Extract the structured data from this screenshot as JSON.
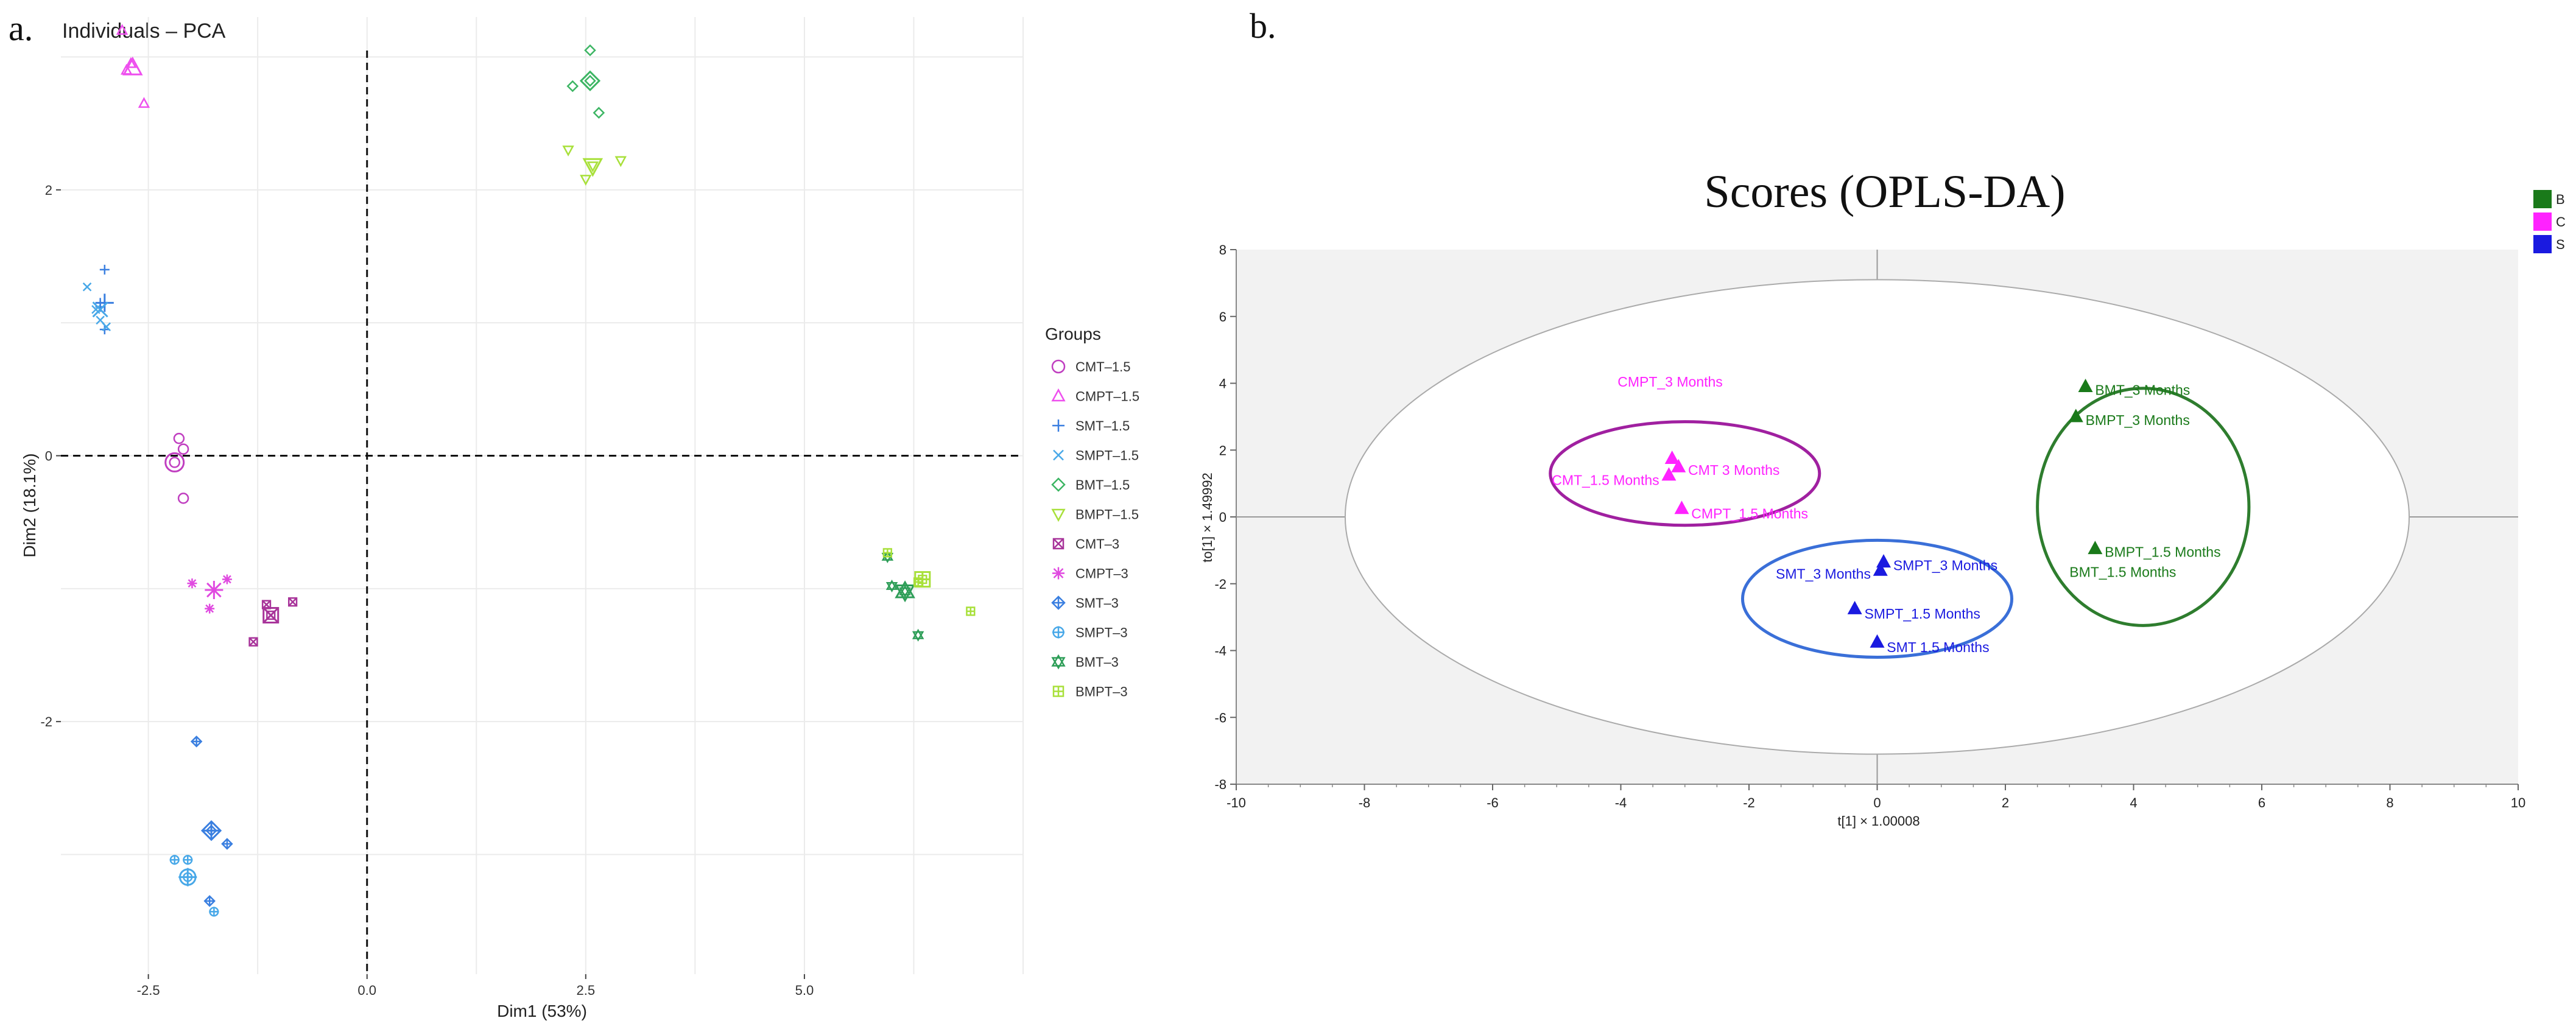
{
  "panel_a_label": "a.",
  "panel_b_label": "b.",
  "chart_data": [
    {
      "type": "scatter",
      "title": "Individuals – PCA",
      "xlabel": "Dim1 (53%)",
      "ylabel": "Dim2 (18.1%)",
      "xlim": [
        -3.5,
        7.5
      ],
      "ylim": [
        -3.9,
        3.3
      ],
      "xticks": [
        -2.5,
        0.0,
        2.5,
        5.0
      ],
      "xtick_labels": [
        "-2.5",
        "0.0",
        "2.5",
        "5.0"
      ],
      "yticks": [
        2,
        0,
        -2
      ],
      "ytick_labels": [
        "2",
        "0",
        "-2"
      ],
      "grid": true,
      "legend_title": "Groups",
      "legend_position": "right",
      "series": [
        {
          "name": "CMT–1.5",
          "color": "#c03ec0",
          "marker": "circle",
          "points": [
            [
              -2.1,
              0.05
            ],
            [
              -2.15,
              0.13
            ],
            [
              -2.2,
              -0.05
            ],
            [
              -2.1,
              -0.32
            ]
          ],
          "centroid": [
            -2.2,
            -0.05
          ]
        },
        {
          "name": "CMPT–1.5",
          "color": "#ee4fee",
          "marker": "triangle",
          "points": [
            [
              -2.8,
              3.2
            ],
            [
              -2.7,
              2.95
            ],
            [
              -2.55,
              2.65
            ],
            [
              -2.75,
              2.9
            ]
          ],
          "centroid": [
            -2.68,
            2.92
          ]
        },
        {
          "name": "SMT–1.5",
          "color": "#3a7fe0",
          "marker": "plus",
          "points": [
            [
              -3.05,
              1.12
            ],
            [
              -3.0,
              1.4
            ],
            [
              -3.0,
              0.95
            ],
            [
              -3.05,
              1.15
            ]
          ],
          "centroid": [
            -3.0,
            1.15
          ]
        },
        {
          "name": "SMPT–1.5",
          "color": "#48a8e8",
          "marker": "x",
          "points": [
            [
              -3.2,
              1.27
            ],
            [
              -3.1,
              1.1
            ],
            [
              -3.05,
              1.02
            ],
            [
              -2.98,
              0.97
            ]
          ],
          "centroid": [
            -3.05,
            1.1
          ]
        },
        {
          "name": "BMT–1.5",
          "color": "#3cb563",
          "marker": "diamond",
          "points": [
            [
              2.55,
              3.05
            ],
            [
              2.35,
              2.78
            ],
            [
              2.65,
              2.58
            ],
            [
              2.55,
              2.82
            ]
          ],
          "centroid": [
            2.55,
            2.82
          ]
        },
        {
          "name": "BMPT–1.5",
          "color": "#a8e03a",
          "marker": "triangle-down",
          "points": [
            [
              2.3,
              2.3
            ],
            [
              2.5,
              2.08
            ],
            [
              2.9,
              2.22
            ],
            [
              2.58,
              2.18
            ]
          ],
          "centroid": [
            2.58,
            2.18
          ]
        },
        {
          "name": "CMT–3",
          "color": "#a8349a",
          "marker": "square-x",
          "points": [
            [
              -1.3,
              -1.4
            ],
            [
              -0.85,
              -1.1
            ],
            [
              -1.15,
              -1.12
            ],
            [
              -1.1,
              -1.2
            ]
          ],
          "centroid": [
            -1.1,
            -1.2
          ]
        },
        {
          "name": "CMPT–3",
          "color": "#e04ae0",
          "marker": "asterisk",
          "points": [
            [
              -1.6,
              -0.93
            ],
            [
              -2.0,
              -0.96
            ],
            [
              -1.8,
              -1.15
            ],
            [
              -1.75,
              -1.01
            ]
          ],
          "centroid": [
            -1.75,
            -1.01
          ]
        },
        {
          "name": "SMT–3",
          "color": "#3a7fe0",
          "marker": "diamond-plus",
          "points": [
            [
              -1.95,
              -2.15
            ],
            [
              -1.6,
              -2.92
            ],
            [
              -1.8,
              -3.35
            ],
            [
              -1.78,
              -2.82
            ]
          ],
          "centroid": [
            -1.78,
            -2.82
          ]
        },
        {
          "name": "SMPT–3",
          "color": "#48a8e8",
          "marker": "circle-plus",
          "points": [
            [
              -2.2,
              -3.04
            ],
            [
              -2.05,
              -3.04
            ],
            [
              -1.75,
              -3.43
            ],
            [
              -2.05,
              -3.17
            ]
          ],
          "centroid": [
            -2.05,
            -3.17
          ]
        },
        {
          "name": "BMT–3",
          "color": "#2e9e58",
          "marker": "star-triangle",
          "points": [
            [
              5.95,
              -0.76
            ],
            [
              6.0,
              -0.98
            ],
            [
              6.15,
              -1.02
            ],
            [
              6.3,
              -1.35
            ]
          ],
          "centroid": [
            6.15,
            -1.02
          ]
        },
        {
          "name": "BMPT–3",
          "color": "#a8e03a",
          "marker": "square-plus",
          "points": [
            [
              5.95,
              -0.73
            ],
            [
              6.3,
              -0.95
            ],
            [
              6.9,
              -1.17
            ],
            [
              6.35,
              -0.93
            ]
          ],
          "centroid": [
            6.35,
            -0.93
          ]
        }
      ]
    },
    {
      "type": "scatter",
      "title": "Scores (OPLS-DA)",
      "xlabel": "t[1] × 1.00008",
      "ylabel": "to[1] × 1.49992",
      "xlim": [
        -10,
        10
      ],
      "ylim": [
        -8,
        8
      ],
      "xticks": [
        -10,
        -8,
        -6,
        -4,
        -2,
        0,
        2,
        4,
        6,
        8,
        10
      ],
      "xtick_labels": [
        "-10",
        "-8",
        "-6",
        "-4",
        "-2",
        "0",
        "2",
        "4",
        "6",
        "8",
        "10"
      ],
      "yticks": [
        8,
        6,
        4,
        2,
        0,
        -2,
        -4,
        -6,
        -8
      ],
      "ytick_labels": [
        "8",
        "6",
        "4",
        "2",
        "0",
        "-2",
        "-4",
        "-6",
        "-8"
      ],
      "legend_position": "top-right",
      "legend": [
        {
          "label": "B",
          "color": "#1a7a1a"
        },
        {
          "label": "C",
          "color": "#ff22ff"
        },
        {
          "label": "S",
          "color": "#1a1ae0"
        }
      ],
      "points": [
        {
          "label": "CMPT_3 Months",
          "x": -3.2,
          "y": 1.75,
          "group": "C",
          "label_dx": -0.85,
          "label_dy": 2.3,
          "anchor": "start"
        },
        {
          "label": "CMT 3 Months",
          "x": -3.1,
          "y": 1.5,
          "group": "C",
          "label_dx": 0.15,
          "label_dy": -0.1,
          "anchor": "start"
        },
        {
          "label": "CMT_1.5 Months",
          "x": -3.25,
          "y": 1.25,
          "group": "C",
          "label_dx": -0.15,
          "label_dy": -0.15,
          "anchor": "end"
        },
        {
          "label": "CMPT_1.5 Months",
          "x": -3.05,
          "y": 0.25,
          "group": "C",
          "label_dx": 0.15,
          "label_dy": -0.15,
          "anchor": "start"
        },
        {
          "label": "BMT_3 Months",
          "x": 3.25,
          "y": 3.9,
          "group": "B",
          "label_dx": 0.15,
          "label_dy": -0.1,
          "anchor": "start"
        },
        {
          "label": "BMPT_3 Months",
          "x": 3.1,
          "y": 3.0,
          "group": "B",
          "label_dx": 0.15,
          "label_dy": -0.1,
          "anchor": "start"
        },
        {
          "label": "BMPT_1.5 Months",
          "x": 3.4,
          "y": -0.95,
          "group": "B",
          "label_dx": 0.15,
          "label_dy": -0.1,
          "anchor": "start"
        },
        {
          "label": "BMT_1.5 Months",
          "x": 3.05,
          "y": -1.55,
          "group": "B",
          "label_dx": -0.05,
          "label_dy": -0.1,
          "anchor": "start",
          "no_marker": true
        },
        {
          "label": "SMPT_3 Months",
          "x": 0.1,
          "y": -1.35,
          "group": "S",
          "label_dx": 0.15,
          "label_dy": -0.1,
          "anchor": "start"
        },
        {
          "label": "SMT_3 Months",
          "x": 0.05,
          "y": -1.6,
          "group": "S",
          "label_dx": -0.15,
          "label_dy": -0.1,
          "anchor": "end"
        },
        {
          "label": "SMPT_1.5 Months",
          "x": -0.35,
          "y": -2.75,
          "group": "S",
          "label_dx": 0.15,
          "label_dy": -0.15,
          "anchor": "start"
        },
        {
          "label": "SMT 1.5 Months",
          "x": 0.0,
          "y": -3.75,
          "group": "S",
          "label_dx": 0.15,
          "label_dy": -0.15,
          "anchor": "start"
        }
      ],
      "ellipses": [
        {
          "name": "hotelling-t2",
          "cx": 0.0,
          "cy": 0.0,
          "rx": 8.3,
          "ry": 7.1,
          "color": "#aaaaaa"
        },
        {
          "name": "group-C",
          "cx": -3.0,
          "cy": 1.3,
          "rx": 2.1,
          "ry": 1.55,
          "color": "#a020a0"
        },
        {
          "name": "group-S",
          "cx": 0.0,
          "cy": -2.45,
          "rx": 2.1,
          "ry": 1.75,
          "color": "#3a6fd8"
        },
        {
          "name": "group-B",
          "cx": 4.15,
          "cy": 0.3,
          "rx": 1.65,
          "ry": 3.55,
          "color": "#2e7d2e"
        }
      ]
    }
  ]
}
